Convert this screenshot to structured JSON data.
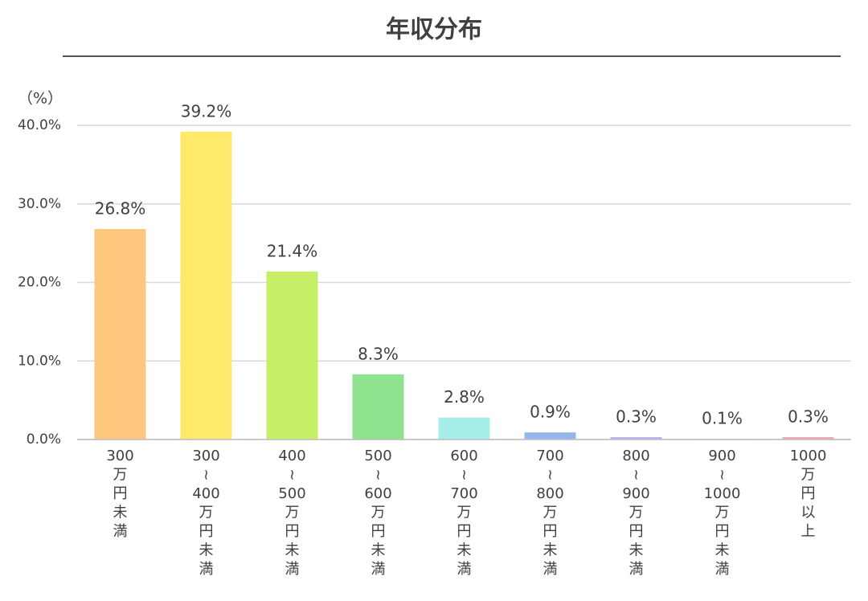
{
  "chart_data": {
    "type": "bar",
    "title": "年収分布",
    "y_label": "（%）",
    "categories": [
      [
        "300",
        "万",
        "円",
        "未",
        "満"
      ],
      [
        "300",
        "≀",
        "400",
        "万",
        "円",
        "未",
        "満"
      ],
      [
        "400",
        "≀",
        "500",
        "万",
        "円",
        "未",
        "満"
      ],
      [
        "500",
        "≀",
        "600",
        "万",
        "円",
        "未",
        "満"
      ],
      [
        "600",
        "≀",
        "700",
        "万",
        "円",
        "未",
        "満"
      ],
      [
        "700",
        "≀",
        "800",
        "万",
        "円",
        "未",
        "満"
      ],
      [
        "800",
        "≀",
        "900",
        "万",
        "円",
        "未",
        "満"
      ],
      [
        "900",
        "≀",
        "1000",
        "万",
        "円",
        "未",
        "満"
      ],
      [
        "1000",
        "万",
        "円",
        "以",
        "上"
      ]
    ],
    "values": [
      26.8,
      39.2,
      21.4,
      8.3,
      2.8,
      0.9,
      0.3,
      0.1,
      0.3
    ],
    "value_labels": [
      "26.8%",
      "39.2%",
      "21.4%",
      "8.3%",
      "2.8%",
      "0.9%",
      "0.3%",
      "0.1%",
      "0.3%"
    ],
    "colors": [
      "#fcc77c",
      "#ffe96a",
      "#c6ee66",
      "#8fe38f",
      "#a7eeeb",
      "#94b6ec",
      "#b4b4ec",
      "#d8c8ec",
      "#f2a6b0"
    ],
    "ylim": [
      0,
      40
    ],
    "yticks": [
      {
        "value": 0,
        "label": "0.0%"
      },
      {
        "value": 10,
        "label": "10.0%"
      },
      {
        "value": 20,
        "label": "20.0%"
      },
      {
        "value": 30,
        "label": "30.0%"
      },
      {
        "value": 40,
        "label": "40.0%"
      }
    ],
    "grid": true
  }
}
